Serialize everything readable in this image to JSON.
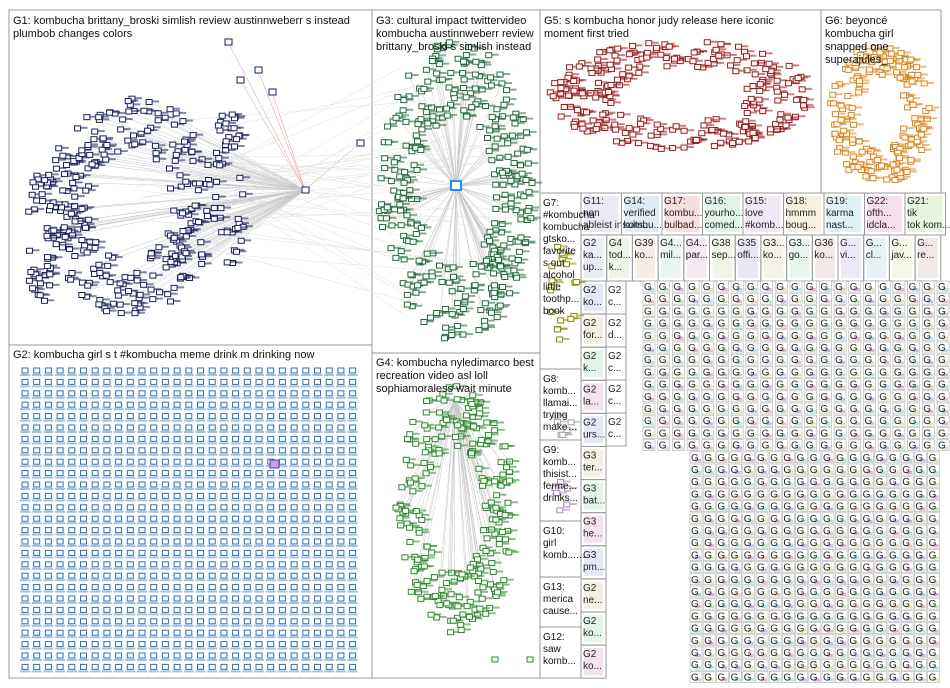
{
  "groups": {
    "g1": {
      "title": "G1: kombucha brittany_broski simlish review austinnweberr s instead plumbob changes colors",
      "color": "#1a1f5c"
    },
    "g2": {
      "title": "G2: kombucha girl s t #kombucha meme drink m drinking now",
      "color": "#2f6fb0"
    },
    "g3": {
      "title": "G3: cultural impact twittervideo kombucha austinnweberr review brittany_broski s simlish instead",
      "color": "#1f6b3a"
    },
    "g4": {
      "title": "G4: kombucha nyledimarco best recreation video asl loll sophiamoraless wait minute",
      "color": "#2d8a2d"
    },
    "g5": {
      "title": "G5: s kombucha honor judy release here iconic moment first tried",
      "color": "#9b1c1c"
    },
    "g6": {
      "title": "G6: beyoncé kombucha girl snapped one superajules_",
      "color": "#d9861a"
    },
    "g7": {
      "title": "G7: #kombucha kombucha gtsko... favorite s out alcohol little toothp... book",
      "color": "#8a8a00"
    },
    "g8": {
      "title": "G8: komb... llamai... trying make fun...",
      "color": "#a0a0a0"
    },
    "g9": {
      "title": "G9: komb... thisist... ferme... drinks...",
      "color": "#b37fd1"
    },
    "g10": {
      "title": "G10: girl komb... cultur...",
      "color": "#6b6b6b"
    },
    "g13": {
      "title": "G13: merica cause...",
      "color": "#6b6b6b"
    },
    "g12": {
      "title": "G12: saw komb...",
      "color": "#6b6b6b"
    },
    "row1": [
      {
        "id": "G11",
        "title": "G11: non ableist insults...",
        "color": "#b3a6d9"
      },
      {
        "id": "G14",
        "title": "G14: verified kombu...",
        "color": "#7fb3d9"
      },
      {
        "id": "G17",
        "title": "G17: kombu... bulbad...",
        "color": "#d97f7f"
      },
      {
        "id": "G16",
        "title": "G16: yourho... comed...",
        "color": "#7fd9a6"
      },
      {
        "id": "G15",
        "title": "G15: love #komb...",
        "color": "#c9a3d9"
      },
      {
        "id": "G18",
        "title": "G18: hmmm boug...",
        "color": "#d9c27f"
      },
      {
        "id": "G19",
        "title": "G19: karma nast...",
        "color": "#7fc9d9"
      },
      {
        "id": "G22",
        "title": "G22: ofth... idcla...",
        "color": "#d97fb3"
      },
      {
        "id": "G21",
        "title": "G21: tik tok kom...",
        "color": "#9fd97f"
      }
    ],
    "row2": [
      {
        "id": "G2x",
        "title": "G2 ka... up...",
        "color": "#a3b3d9"
      },
      {
        "id": "G4x",
        "title": "G4 tod... k...",
        "color": "#b3d9a3"
      },
      {
        "id": "G39",
        "title": "G39 ko...",
        "color": "#d9b3a3"
      },
      {
        "id": "G4y",
        "title": "G4... mil...",
        "color": "#a3d9d0"
      },
      {
        "id": "G4z",
        "title": "G4... par...",
        "color": "#d9a3c9"
      },
      {
        "id": "G38",
        "title": "G38 sep...",
        "color": "#c9d9a3"
      },
      {
        "id": "G35",
        "title": "G35 offi...",
        "color": "#a3a3d9"
      },
      {
        "id": "G3a",
        "title": "G3... ko...",
        "color": "#d9cfa3"
      },
      {
        "id": "G3b",
        "title": "G3... go...",
        "color": "#a3d9b3"
      },
      {
        "id": "G36",
        "title": "G36 ko...",
        "color": "#d9a3a3"
      },
      {
        "id": "G3c",
        "title": "G... vi...",
        "color": "#b3a3d9"
      },
      {
        "id": "G3d",
        "title": "G... cl...",
        "color": "#a3c9d9"
      },
      {
        "id": "G3e",
        "title": "G... jav...",
        "color": "#d9d9a3"
      },
      {
        "id": "G3f",
        "title": "G... re...",
        "color": "#c9a3a3"
      }
    ],
    "leftcol": [
      "G2 ko...",
      "G2 for...",
      "G2 k...",
      "G2 la...",
      "G2 urs...",
      "G3 ter...",
      "G3 bat...",
      "G3 he...",
      "G3 pm...",
      "G2 ne...",
      "G2 ko...",
      "G2 ko..."
    ],
    "midcol": [
      "G2 c...",
      "G2 d...",
      "G2 c...",
      "G2 c...",
      "G2 c..."
    ]
  }
}
